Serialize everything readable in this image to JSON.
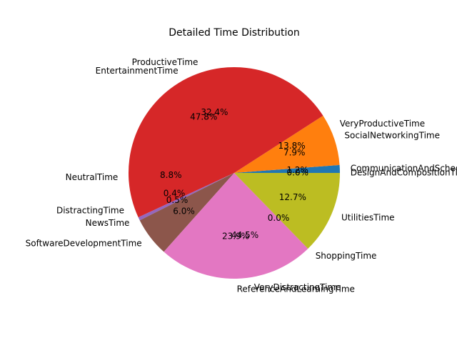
{
  "chart_data": {
    "type": "pie",
    "title": "Detailed Time Distribution",
    "start_angle_deg": 0,
    "counterclock": true,
    "slices": [
      {
        "label": "CommunicationAndSchedulingTime",
        "pct_label": "1.2%",
        "value": 1.2,
        "color": "#1f77b4"
      },
      {
        "label": "SocialNetworkingTime",
        "pct_label": "7.9%",
        "value": 7.9,
        "color": "#ff7f0e"
      },
      {
        "label": "EntertainmentTime",
        "pct_label": "47.8%",
        "value": 47.8,
        "color": "#d62728"
      },
      {
        "label": "NewsTime",
        "pct_label": "0.5%",
        "value": 0.5,
        "color": "#9467bd"
      },
      {
        "label": "SoftwareDevelopmentTime",
        "pct_label": "6.0%",
        "value": 6.0,
        "color": "#8c564b"
      },
      {
        "label": "ReferenceAndLearningTime",
        "pct_label": "23.9%",
        "value": 23.9,
        "color": "#e377c2"
      },
      {
        "label": "ShoppingTime",
        "pct_label": "0.0%",
        "value": 0.0,
        "color": "#7f7f7f"
      },
      {
        "label": "UtilitiesTime",
        "pct_label": "12.7%",
        "value": 12.7,
        "color": "#bcbd22"
      }
    ],
    "overlay_labels": [
      {
        "label": "DesignAndCompositionTime",
        "pct_label": "0.0%",
        "value": 0.0
      },
      {
        "label": "VeryProductiveTime",
        "pct_label": "13.8%",
        "value": 13.8
      },
      {
        "label": "ProductiveTime",
        "pct_label": "32.4%",
        "value": 32.4
      },
      {
        "label": "NeutralTime",
        "pct_label": "8.8%",
        "value": 8.8
      },
      {
        "label": "DistractingTime",
        "pct_label": "0.4%",
        "value": 0.4
      },
      {
        "label": "VeryDistractingTime",
        "pct_label": "44.5%",
        "value": 44.5
      }
    ]
  }
}
